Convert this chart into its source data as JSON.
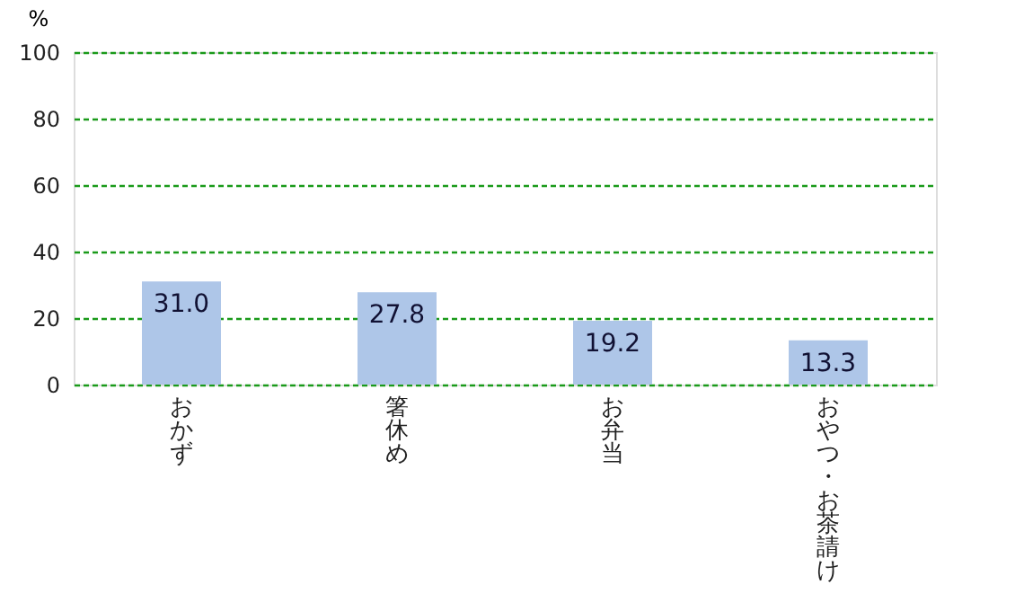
{
  "chart_data": {
    "type": "bar",
    "ylabel": "%",
    "categories": [
      "おかず",
      "箸休め",
      "お弁当",
      "おやつ・お茶請け"
    ],
    "values": [
      31.0,
      27.8,
      19.2,
      13.3
    ],
    "color": "#aec6e8",
    "value_labels": [
      "31.0",
      "27.8",
      "19.2",
      "13.3"
    ],
    "ylim": [
      0,
      100
    ],
    "yticks": [
      0,
      20,
      40,
      60,
      80,
      100
    ],
    "grid": "y"
  }
}
